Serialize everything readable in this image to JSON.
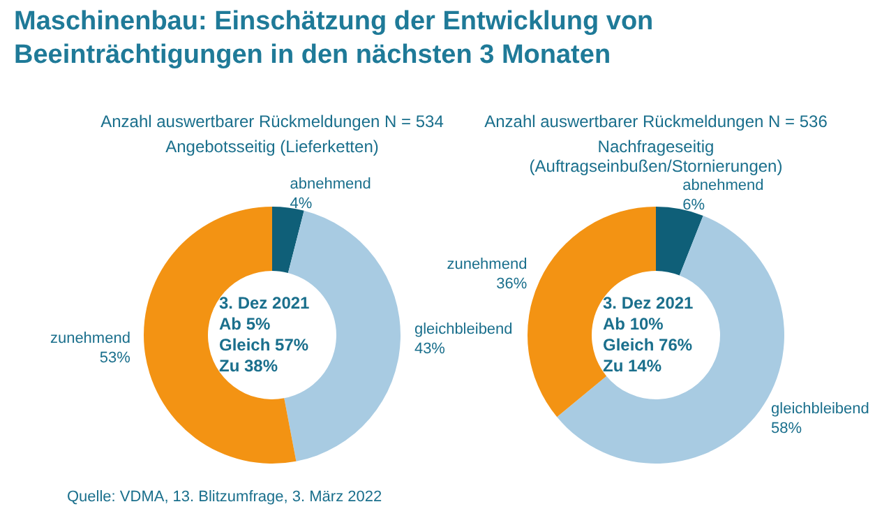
{
  "chart_data": [
    {
      "type": "other",
      "title": "Maschinenbau: Einschätzung der Entwicklung von Beeinträchtigungen in den nächsten 3 Monaten",
      "annotations": [
        "Quelle: VDMA, 13. Blitzumfrage, 3. März 2022"
      ]
    },
    {
      "type": "donut",
      "subtitle": "Anzahl auswertbarer Rückmeldungen N = 534",
      "title": "Angebotsseitig (Lieferketten)",
      "categories": [
        "abnehmend",
        "gleichbleibend",
        "zunehmend"
      ],
      "values": [
        4,
        43,
        53
      ],
      "value_labels": [
        "4%",
        "43%",
        "53%"
      ],
      "colors": [
        "#0f5f78",
        "#a8cbe2",
        "#f39313"
      ],
      "annotations": [
        "3. Dez 2021",
        "Ab 5%",
        "Gleich 57%",
        "Zu 38%"
      ],
      "legend": false
    },
    {
      "type": "donut",
      "subtitle": "Anzahl auswertbarer Rückmeldungen N = 536",
      "title": "Nachfrageseitig\n(Auftragseinbußen/Stornierungen)",
      "categories": [
        "abnehmend",
        "gleichbleibend",
        "zunehmend"
      ],
      "values": [
        6,
        58,
        36
      ],
      "value_labels": [
        "6%",
        "58%",
        "36%"
      ],
      "colors": [
        "#0f5f78",
        "#a8cbe2",
        "#f39313"
      ],
      "annotations": [
        "3. Dez 2021",
        "Ab 10%",
        "Gleich 76%",
        "Zu 14%"
      ],
      "legend": false
    }
  ]
}
